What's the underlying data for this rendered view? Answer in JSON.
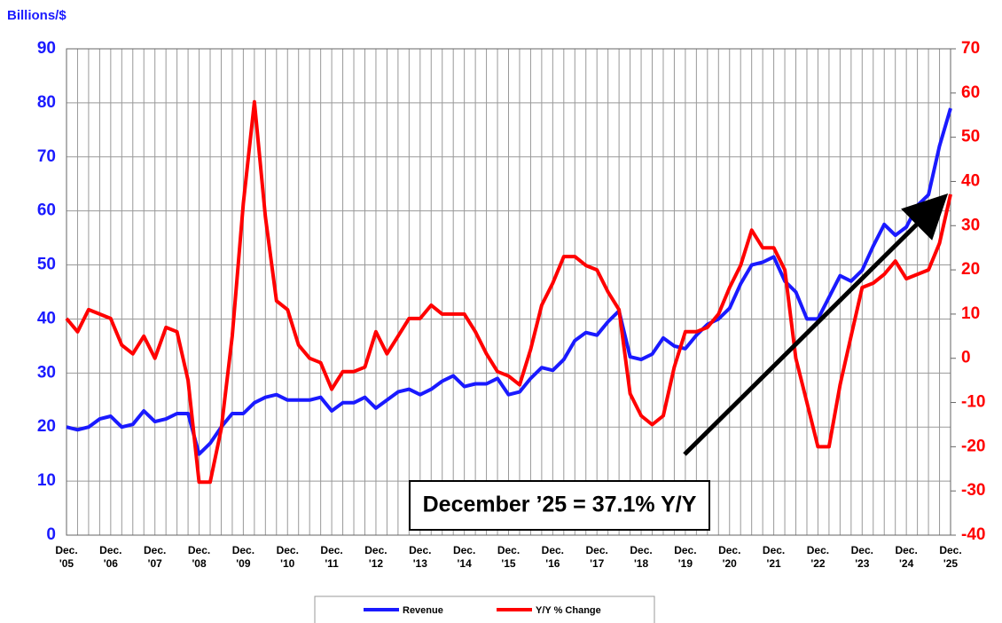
{
  "chart_data": {
    "type": "line",
    "ylabel": "Billions/$",
    "annotation": "December ’25 = 37.1% Y/Y",
    "categories": [
      "Dec. '05",
      null,
      null,
      null,
      "Dec. '06",
      null,
      null,
      null,
      "Dec. '07",
      null,
      null,
      null,
      "Dec. '08",
      null,
      null,
      null,
      "Dec. '09",
      null,
      null,
      null,
      "Dec. '10",
      null,
      null,
      null,
      "Dec. '11",
      null,
      null,
      null,
      "Dec. '12",
      null,
      null,
      null,
      "Dec. '13",
      null,
      null,
      null,
      "Dec. '14",
      null,
      null,
      null,
      "Dec. '15",
      null,
      null,
      null,
      "Dec. '16",
      null,
      null,
      null,
      "Dec. '17",
      null,
      null,
      null,
      "Dec. '18",
      null,
      null,
      null,
      "Dec. '19",
      null,
      null,
      null,
      "Dec. '20",
      null,
      null,
      null,
      "Dec. '21",
      null,
      null,
      null,
      "Dec. '22",
      null,
      null,
      null,
      "Dec. '23",
      null,
      null,
      null,
      "Dec. '24",
      null,
      null,
      null,
      "Dec. '25"
    ],
    "series": [
      {
        "name": "Revenue",
        "color": "#1a1aff",
        "values": [
          20,
          19.5,
          20,
          21.5,
          22,
          20,
          20.5,
          23,
          21,
          21.5,
          22.5,
          22.5,
          15,
          17,
          20,
          22.5,
          22.5,
          24.5,
          25.5,
          26,
          25,
          25,
          25,
          25.5,
          23,
          24.5,
          24.5,
          25.5,
          23.5,
          25,
          26.5,
          27,
          26,
          27,
          28.5,
          29.5,
          27.5,
          28,
          28,
          29,
          26,
          26.5,
          29,
          31,
          30.5,
          32.5,
          36,
          37.5,
          37,
          39.5,
          41.5,
          33,
          32.5,
          33.5,
          36.5,
          35,
          34.5,
          37,
          39,
          40,
          42,
          46.5,
          50,
          50.5,
          51.5,
          47,
          45,
          40,
          40,
          44,
          48,
          47,
          49,
          53.5,
          57.5,
          55.5,
          57,
          61,
          63,
          72,
          79
        ]
      },
      {
        "name": "Y/Y % Change",
        "color": "#ff0000",
        "axis": "y2",
        "values": [
          9,
          6,
          11,
          10,
          9,
          3,
          1,
          5,
          0,
          7,
          6,
          -5,
          -28,
          -28,
          -16,
          5,
          35,
          58,
          32,
          13,
          11,
          3,
          0,
          -1,
          -7,
          -3,
          -3,
          -2,
          6,
          1,
          5,
          9,
          9,
          12,
          10,
          10,
          10,
          6,
          1,
          -3,
          -4,
          -6,
          2,
          12,
          17,
          23,
          23,
          21,
          20,
          15,
          11,
          -8,
          -13,
          -15,
          -13,
          -2,
          6,
          6,
          7,
          10,
          16,
          21,
          29,
          25,
          25,
          20,
          0,
          -10,
          -20,
          -20,
          -6,
          5,
          16,
          17,
          19,
          22,
          18,
          19,
          20,
          26,
          37.1
        ]
      }
    ],
    "ylim": [
      0,
      90
    ],
    "yticks": [
      0,
      10,
      20,
      30,
      40,
      50,
      60,
      70,
      80,
      90
    ],
    "y2lim": [
      -40,
      70
    ],
    "y2ticks": [
      -40,
      -30,
      -20,
      -10,
      0,
      10,
      20,
      30,
      40,
      50,
      60,
      70
    ],
    "grid": true
  }
}
